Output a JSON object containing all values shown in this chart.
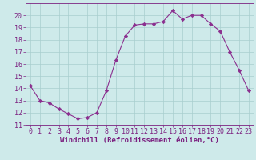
{
  "x": [
    0,
    1,
    2,
    3,
    4,
    5,
    6,
    7,
    8,
    9,
    10,
    11,
    12,
    13,
    14,
    15,
    16,
    17,
    18,
    19,
    20,
    21,
    22,
    23
  ],
  "y": [
    14.2,
    13.0,
    12.8,
    12.3,
    11.9,
    11.5,
    11.6,
    12.0,
    13.8,
    16.3,
    18.3,
    19.2,
    19.3,
    19.3,
    19.5,
    20.4,
    19.7,
    20.0,
    20.0,
    19.3,
    18.7,
    17.0,
    15.5,
    13.8
  ],
  "line_color": "#8b2f8f",
  "marker": "D",
  "marker_size": 2.2,
  "bg_color": "#ceeaea",
  "grid_color": "#a8cece",
  "axis_color": "#7b2080",
  "xlabel": "Windchill (Refroidissement éolien,°C)",
  "xlim": [
    -0.5,
    23.5
  ],
  "ylim": [
    11,
    21
  ],
  "xticks": [
    0,
    1,
    2,
    3,
    4,
    5,
    6,
    7,
    8,
    9,
    10,
    11,
    12,
    13,
    14,
    15,
    16,
    17,
    18,
    19,
    20,
    21,
    22,
    23
  ],
  "yticks": [
    11,
    12,
    13,
    14,
    15,
    16,
    17,
    18,
    19,
    20
  ],
  "label_fontsize": 6.5,
  "tick_fontsize": 6.0
}
